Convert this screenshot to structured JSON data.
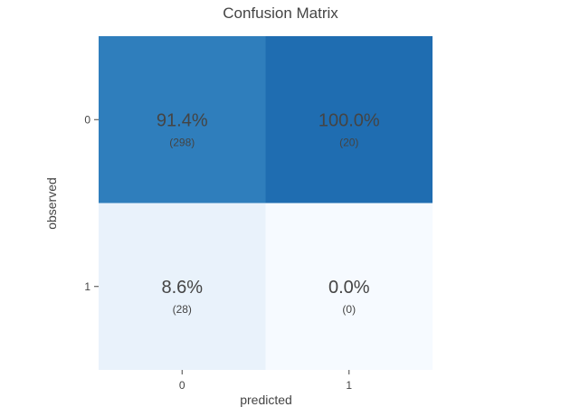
{
  "chart_data": {
    "type": "heatmap",
    "title": "Confusion Matrix",
    "xlabel": "predicted",
    "ylabel": "observed",
    "x_categories": [
      "0",
      "1"
    ],
    "y_categories": [
      "0",
      "1"
    ],
    "cells": [
      {
        "observed": "0",
        "predicted": "0",
        "percent": 91.4,
        "percent_label": "91.4%",
        "count": 298,
        "count_label": "(298)",
        "color": "#2f7ebc"
      },
      {
        "observed": "0",
        "predicted": "1",
        "percent": 100.0,
        "percent_label": "100.0%",
        "count": 20,
        "count_label": "(20)",
        "color": "#1f6db1"
      },
      {
        "observed": "1",
        "predicted": "0",
        "percent": 8.6,
        "percent_label": "8.6%",
        "count": 28,
        "count_label": "(28)",
        "color": "#e9f2fb"
      },
      {
        "observed": "1",
        "predicted": "1",
        "percent": 0.0,
        "percent_label": "0.0%",
        "count": 0,
        "count_label": "(0)",
        "color": "#f6faff"
      }
    ]
  }
}
